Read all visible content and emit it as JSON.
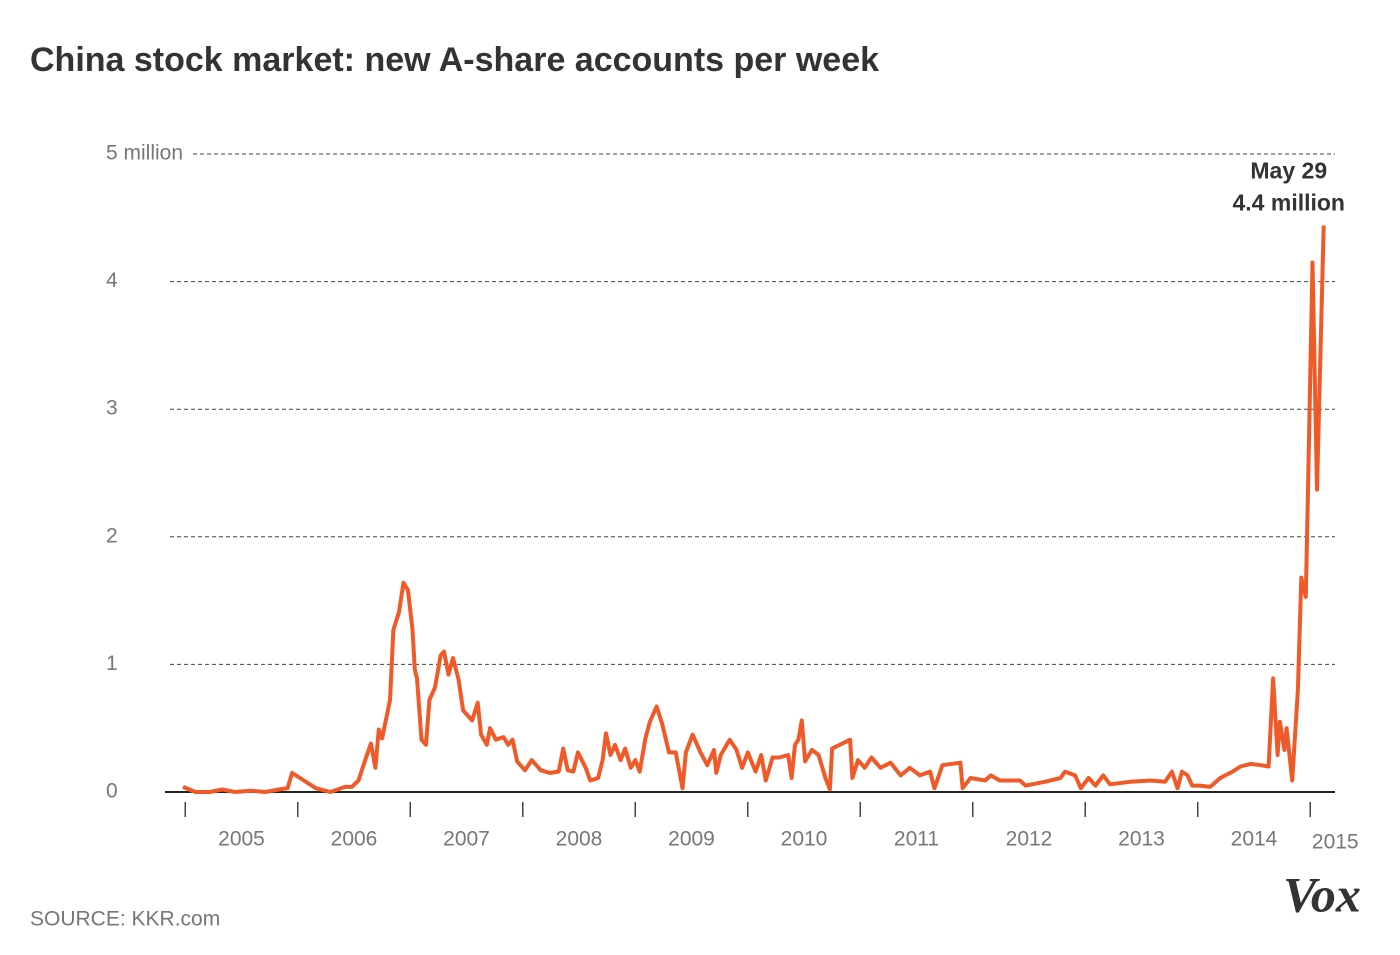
{
  "chart_data": {
    "type": "line",
    "title": "China stock market: new A-share accounts per week",
    "source": "SOURCE: KKR.com",
    "logo": "Vox",
    "annotation": {
      "lines": [
        "May 29",
        "4.4 million"
      ]
    },
    "color": "#f05a28",
    "grid": true,
    "xlim": [
      2004.82,
      2015.22
    ],
    "xticks": [
      2005,
      2006,
      2007,
      2008,
      2009,
      2010,
      2011,
      2012,
      2013,
      2014,
      2015
    ],
    "ylim": [
      0,
      5
    ],
    "yticks": [
      0,
      1,
      2,
      3,
      4,
      {
        "value": 5,
        "label": "5 million"
      }
    ],
    "x": [
      2004.98,
      2005.09,
      2005.22,
      2005.33,
      2005.44,
      2005.58,
      2005.71,
      2005.84,
      2005.91,
      2005.95,
      2006.02,
      2006.16,
      2006.29,
      2006.42,
      2006.48,
      2006.54,
      2006.6,
      2006.65,
      2006.69,
      2006.72,
      2006.75,
      2006.82,
      2006.85,
      2006.9,
      2006.94,
      2006.98,
      2007.02,
      2007.04,
      2007.06,
      2007.1,
      2007.14,
      2007.17,
      2007.22,
      2007.27,
      2007.3,
      2007.34,
      2007.38,
      2007.43,
      2007.47,
      2007.55,
      2007.6,
      2007.63,
      2007.68,
      2007.71,
      2007.76,
      2007.83,
      2007.87,
      2007.91,
      2007.95,
      2008.02,
      2008.08,
      2008.16,
      2008.24,
      2008.32,
      2008.36,
      2008.4,
      2008.45,
      2008.49,
      2008.56,
      2008.6,
      2008.67,
      2008.71,
      2008.74,
      2008.78,
      2008.82,
      2008.87,
      2008.91,
      2008.96,
      2009.0,
      2009.04,
      2009.09,
      2009.13,
      2009.19,
      2009.24,
      2009.3,
      2009.36,
      2009.42,
      2009.45,
      2009.51,
      2009.58,
      2009.64,
      2009.7,
      2009.72,
      2009.76,
      2009.84,
      2009.9,
      2009.95,
      2010.0,
      2010.07,
      2010.12,
      2010.16,
      2010.22,
      2010.28,
      2010.36,
      2010.39,
      2010.42,
      2010.45,
      2010.48,
      2010.51,
      2010.57,
      2010.63,
      2010.69,
      2010.73,
      2010.75,
      2010.91,
      2010.93,
      2010.98,
      2011.04,
      2011.1,
      2011.18,
      2011.27,
      2011.36,
      2011.44,
      2011.53,
      2011.62,
      2011.66,
      2011.73,
      2011.89,
      2011.91,
      2011.98,
      2012.11,
      2012.16,
      2012.24,
      2012.42,
      2012.47,
      2012.64,
      2012.78,
      2012.82,
      2012.91,
      2012.96,
      2013.03,
      2013.09,
      2013.16,
      2013.22,
      2013.4,
      2013.58,
      2013.71,
      2013.77,
      2013.82,
      2013.86,
      2013.91,
      2013.95,
      2014.02,
      2014.11,
      2014.2,
      2014.31,
      2014.38,
      2014.47,
      2014.56,
      2014.63,
      2014.67,
      2014.71,
      2014.73,
      2014.77,
      2014.79,
      2014.84,
      2014.89,
      2014.92,
      2014.96,
      2014.98,
      2015.02,
      2015.06,
      2015.12
    ],
    "values": [
      0.04,
      0,
      0,
      0.02,
      0,
      0.01,
      0,
      0.02,
      0.03,
      0.15,
      0.11,
      0.03,
      0,
      0.04,
      0.04,
      0.09,
      0.25,
      0.38,
      0.19,
      0.49,
      0.42,
      0.72,
      1.27,
      1.41,
      1.64,
      1.58,
      1.27,
      0.96,
      0.89,
      0.41,
      0.37,
      0.72,
      0.82,
      1.07,
      1.1,
      0.92,
      1.05,
      0.88,
      0.64,
      0.56,
      0.7,
      0.45,
      0.37,
      0.5,
      0.41,
      0.43,
      0.37,
      0.41,
      0.24,
      0.17,
      0.25,
      0.17,
      0.15,
      0.16,
      0.34,
      0.17,
      0.16,
      0.31,
      0.19,
      0.09,
      0.11,
      0.25,
      0.46,
      0.29,
      0.37,
      0.25,
      0.34,
      0.19,
      0.25,
      0.16,
      0.42,
      0.55,
      0.67,
      0.53,
      0.31,
      0.31,
      0.03,
      0.31,
      0.45,
      0.31,
      0.21,
      0.33,
      0.15,
      0.29,
      0.41,
      0.33,
      0.19,
      0.31,
      0.16,
      0.29,
      0.09,
      0.27,
      0.27,
      0.29,
      0.11,
      0.37,
      0.41,
      0.56,
      0.24,
      0.33,
      0.29,
      0.11,
      0.02,
      0.34,
      0.41,
      0.11,
      0.25,
      0.19,
      0.27,
      0.19,
      0.23,
      0.13,
      0.19,
      0.13,
      0.16,
      0.03,
      0.21,
      0.23,
      0.03,
      0.11,
      0.09,
      0.13,
      0.09,
      0.09,
      0.05,
      0.08,
      0.11,
      0.16,
      0.13,
      0.03,
      0.11,
      0.05,
      0.13,
      0.06,
      0.08,
      0.09,
      0.08,
      0.16,
      0.03,
      0.16,
      0.13,
      0.05,
      0.05,
      0.04,
      0.11,
      0.16,
      0.2,
      0.22,
      0.21,
      0.2,
      0.89,
      0.29,
      0.55,
      0.33,
      0.5,
      0.09,
      0.8,
      1.68,
      1.53,
      2.37,
      4.15,
      2.37,
      4.44
    ]
  }
}
